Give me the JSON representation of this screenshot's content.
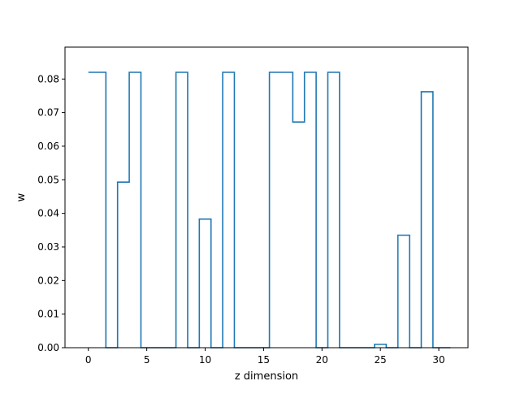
{
  "chart_data": {
    "type": "line",
    "drawstyle": "steps-mid",
    "xlabel": "z dimension",
    "ylabel": "w",
    "xlim": [
      -2,
      32.5
    ],
    "ylim": [
      0.0,
      0.0895
    ],
    "xticks": [
      0,
      5,
      10,
      15,
      20,
      25,
      30
    ],
    "xtick_labels": [
      "0",
      "5",
      "10",
      "15",
      "20",
      "25",
      "30"
    ],
    "yticks": [
      0.0,
      0.01,
      0.02,
      0.03,
      0.04,
      0.05,
      0.06,
      0.07,
      0.08
    ],
    "ytick_labels": [
      "0.00",
      "0.01",
      "0.02",
      "0.03",
      "0.04",
      "0.05",
      "0.06",
      "0.07",
      "0.08"
    ],
    "grid": false,
    "series": [
      {
        "color": "#1f77b4",
        "x": [
          0,
          1,
          2,
          3,
          4,
          5,
          6,
          7,
          8,
          9,
          10,
          11,
          12,
          13,
          14,
          15,
          16,
          17,
          18,
          19,
          20,
          21,
          22,
          23,
          24,
          25,
          26,
          27,
          28,
          29,
          30,
          31
        ],
        "y": [
          0.082,
          0.082,
          0.0,
          0.0493,
          0.082,
          0.0,
          0.0,
          0.0,
          0.082,
          0.0,
          0.0383,
          0.0,
          0.082,
          0.0,
          0.0,
          0.0,
          0.082,
          0.082,
          0.0672,
          0.082,
          0.0,
          0.082,
          0.0,
          0.0,
          0.0,
          0.001,
          0.0,
          0.0335,
          0.0,
          0.0762,
          0.0,
          0.0
        ]
      }
    ]
  }
}
